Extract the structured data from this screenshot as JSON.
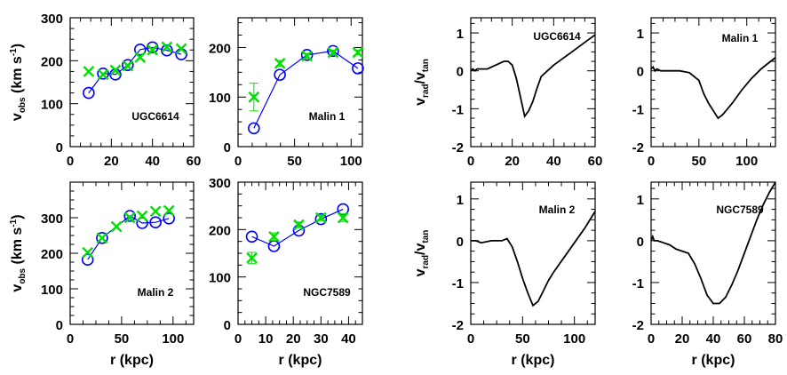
{
  "chart_data": [
    {
      "id": "vobs-ugc6614",
      "type": "scatter",
      "annotation": "UGC6614",
      "ylabel": "v_obs (km s^-1)",
      "xlabel": "",
      "xlim": [
        0,
        60
      ],
      "ylim": [
        0,
        300
      ],
      "xticks": [
        0,
        20,
        40,
        60
      ],
      "yticks": [
        0,
        100,
        200,
        300
      ],
      "series": [
        {
          "marker": "circle",
          "color": "#0000ff",
          "connected": true,
          "x": [
            9,
            16,
            22,
            28,
            34,
            40,
            47,
            54
          ],
          "y": [
            125,
            170,
            168,
            190,
            226,
            231,
            224,
            215
          ]
        },
        {
          "marker": "cross",
          "color": "#00e000",
          "connected": false,
          "x": [
            9,
            16,
            22,
            28,
            34,
            40,
            47,
            54
          ],
          "y": [
            175,
            168,
            178,
            188,
            208,
            225,
            232,
            228
          ]
        }
      ]
    },
    {
      "id": "vobs-malin1",
      "type": "scatter",
      "annotation": "Malin 1",
      "ylabel": "",
      "xlabel": "",
      "xlim": [
        0,
        110
      ],
      "ylim": [
        0,
        260
      ],
      "xticks": [
        0,
        50,
        100
      ],
      "yticks": [
        0,
        100,
        200
      ],
      "series": [
        {
          "marker": "circle",
          "color": "#0000ff",
          "connected": true,
          "x": [
            14,
            37,
            61,
            84,
            106
          ],
          "y": [
            37,
            145,
            185,
            193,
            158
          ]
        },
        {
          "marker": "cross",
          "color": "#00e000",
          "connected": false,
          "x": [
            14,
            37,
            61,
            84,
            106
          ],
          "y": [
            100,
            168,
            183,
            190,
            190
          ],
          "yerr": [
            28,
            6,
            5,
            5,
            5
          ]
        }
      ]
    },
    {
      "id": "vobs-malin2",
      "type": "scatter",
      "annotation": "Malin 2",
      "ylabel": "v_obs (km s^-1)",
      "xlabel": "r (kpc)",
      "xlim": [
        0,
        120
      ],
      "ylim": [
        0,
        400
      ],
      "xticks": [
        0,
        50,
        100
      ],
      "yticks": [
        0,
        100,
        200,
        300
      ],
      "series": [
        {
          "marker": "circle",
          "color": "#0000ff",
          "connected": true,
          "x": [
            17,
            31,
            58,
            70,
            83,
            96
          ],
          "y": [
            182,
            243,
            305,
            285,
            287,
            298
          ]
        },
        {
          "marker": "cross",
          "color": "#00e000",
          "connected": false,
          "x": [
            17,
            31,
            45,
            58,
            70,
            83,
            96
          ],
          "y": [
            202,
            243,
            275,
            300,
            305,
            318,
            320
          ]
        }
      ]
    },
    {
      "id": "vobs-ngc7589",
      "type": "scatter",
      "annotation": "NGC7589",
      "ylabel": "",
      "xlabel": "r (kpc)",
      "xlim": [
        0,
        45
      ],
      "ylim": [
        0,
        300
      ],
      "xticks": [
        0,
        10,
        20,
        30,
        40
      ],
      "yticks": [
        0,
        100,
        200,
        300
      ],
      "series": [
        {
          "marker": "circle",
          "color": "#0000ff",
          "connected": true,
          "x": [
            5,
            13,
            22,
            30,
            38
          ],
          "y": [
            185,
            165,
            198,
            222,
            243
          ]
        },
        {
          "marker": "cross",
          "color": "#00e000",
          "connected": false,
          "x": [
            5,
            13,
            22,
            30,
            38
          ],
          "y": [
            140,
            185,
            210,
            225,
            225
          ],
          "yerr": [
            12,
            8,
            6,
            6,
            8
          ]
        }
      ]
    },
    {
      "id": "vrad-ugc6614",
      "type": "line",
      "annotation": "UGC6614",
      "ylabel": "v_rad/v_tan",
      "xlabel": "",
      "xlim": [
        0,
        60
      ],
      "ylim": [
        -2,
        1.4
      ],
      "xticks": [
        0,
        20,
        40,
        60
      ],
      "yticks": [
        -2,
        -1,
        0,
        1
      ],
      "x": [
        0,
        1,
        2,
        3,
        5,
        8,
        12,
        16,
        18,
        20,
        22,
        24,
        26,
        28,
        30,
        32,
        34,
        37,
        40,
        45,
        50,
        55,
        60
      ],
      "y": [
        0,
        0.05,
        0,
        0.05,
        0.05,
        0.05,
        0.15,
        0.25,
        0.25,
        0.15,
        -0.2,
        -0.7,
        -1.2,
        -1.05,
        -0.8,
        -0.45,
        -0.15,
        0,
        0.15,
        0.35,
        0.55,
        0.75,
        0.95
      ]
    },
    {
      "id": "vrad-malin1",
      "type": "line",
      "annotation": "Malin 1",
      "ylabel": "",
      "xlabel": "",
      "xlim": [
        0,
        130
      ],
      "ylim": [
        -2,
        1.4
      ],
      "xticks": [
        0,
        50,
        100
      ],
      "yticks": [
        -2,
        -1,
        0,
        1
      ],
      "x": [
        0,
        2,
        4,
        6,
        10,
        20,
        30,
        40,
        50,
        55,
        60,
        65,
        70,
        75,
        85,
        95,
        105,
        115,
        125,
        130
      ],
      "y": [
        0.05,
        0.1,
        0,
        0.05,
        0,
        0,
        0,
        -0.05,
        -0.25,
        -0.6,
        -0.85,
        -1.05,
        -1.25,
        -1.15,
        -0.85,
        -0.5,
        -0.2,
        0.05,
        0.25,
        0.35
      ]
    },
    {
      "id": "vrad-malin2",
      "type": "line",
      "annotation": "Malin 2",
      "ylabel": "v_rad/v_tan",
      "xlabel": "r (kpc)",
      "xlim": [
        0,
        120
      ],
      "ylim": [
        -2,
        1.4
      ],
      "xticks": [
        0,
        50,
        100
      ],
      "yticks": [
        -2,
        -1,
        0,
        1
      ],
      "x": [
        0,
        5,
        10,
        20,
        30,
        35,
        40,
        45,
        50,
        55,
        60,
        65,
        70,
        75,
        80,
        90,
        100,
        110,
        120
      ],
      "y": [
        0,
        0,
        -0.05,
        0,
        0,
        0.05,
        -0.15,
        -0.5,
        -0.9,
        -1.25,
        -1.55,
        -1.45,
        -1.2,
        -0.95,
        -0.75,
        -0.4,
        -0.05,
        0.3,
        0.7
      ]
    },
    {
      "id": "vrad-ngc7589",
      "type": "line",
      "annotation": "NGC7589",
      "ylabel": "",
      "xlabel": "r (kpc)",
      "xlim": [
        0,
        80
      ],
      "ylim": [
        -2,
        1.4
      ],
      "xticks": [
        0,
        20,
        40,
        60,
        80
      ],
      "yticks": [
        -2,
        -1,
        0,
        1
      ],
      "x": [
        0,
        1,
        2,
        4,
        8,
        12,
        16,
        20,
        24,
        28,
        32,
        36,
        40,
        44,
        48,
        52,
        56,
        60,
        64,
        68,
        72,
        76,
        80
      ],
      "y": [
        0,
        0.1,
        0,
        0,
        -0.05,
        -0.1,
        -0.2,
        -0.25,
        -0.3,
        -0.55,
        -0.9,
        -1.3,
        -1.5,
        -1.5,
        -1.35,
        -1.05,
        -0.7,
        -0.3,
        0.1,
        0.5,
        0.85,
        1.15,
        1.4
      ]
    }
  ]
}
